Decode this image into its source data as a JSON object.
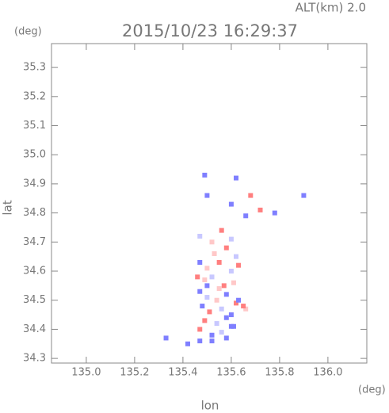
{
  "chart_data": {
    "type": "scatter",
    "altitude_text": "ALT(km) 2.0",
    "title": "2015/10/23 16:29:37",
    "y_unit": "(deg)",
    "x_unit": "(deg)",
    "ylabel": "lat",
    "xlabel": "lon",
    "xlim": [
      134.856,
      136.161
    ],
    "ylim": [
      34.284,
      35.382
    ],
    "xticks": [
      {
        "value": 135.0,
        "label": "135.0"
      },
      135.2,
      135.4,
      135.6,
      135.8,
      {
        "value": 136.0,
        "label": "136.0"
      }
    ],
    "yticks": [
      34.3,
      34.4,
      34.5,
      34.6,
      34.7,
      34.8,
      34.9,
      {
        "value": 35.0,
        "label": "35.0"
      },
      35.1,
      35.2,
      35.3
    ],
    "x": [
      135.49,
      135.5,
      135.62,
      135.6,
      135.68,
      135.66,
      135.72,
      135.78,
      135.9,
      135.47,
      135.52,
      135.56,
      135.6,
      135.53,
      135.58,
      135.62,
      135.47,
      135.5,
      135.55,
      135.6,
      135.63,
      135.49,
      135.52,
      135.57,
      135.61,
      135.47,
      135.5,
      135.54,
      135.58,
      135.62,
      135.48,
      135.51,
      135.56,
      135.6,
      135.63,
      135.66,
      135.49,
      135.54,
      135.58,
      135.6,
      135.65,
      135.47,
      135.52,
      135.56,
      135.61,
      135.46,
      135.5,
      135.55,
      135.33,
      135.42,
      135.47,
      135.52,
      135.58
    ],
    "y": [
      34.93,
      34.86,
      34.92,
      34.83,
      34.86,
      34.79,
      34.81,
      34.8,
      34.86,
      34.72,
      34.7,
      34.74,
      34.71,
      34.66,
      34.68,
      34.65,
      34.63,
      34.61,
      34.63,
      34.6,
      34.62,
      34.57,
      34.58,
      34.55,
      34.56,
      34.53,
      34.51,
      34.5,
      34.52,
      34.49,
      34.48,
      34.46,
      34.47,
      34.45,
      34.5,
      34.47,
      34.43,
      34.42,
      34.44,
      34.41,
      34.48,
      34.4,
      34.38,
      34.39,
      34.41,
      34.58,
      34.55,
      34.54,
      34.37,
      34.35,
      34.36,
      34.36,
      34.37
    ],
    "colors": [
      "#7f7fff",
      "#7f7fff",
      "#7f7fff",
      "#7f7fff",
      "#ff7f7f",
      "#7f7fff",
      "#ff7f7f",
      "#7f7fff",
      "#7f7fff",
      "#c8c8ff",
      "#ffc8c8",
      "#ff7f7f",
      "#c8c8ff",
      "#ffc8c8",
      "#ff7f7f",
      "#c8c8ff",
      "#7f7fff",
      "#ffc8c8",
      "#ff7f7f",
      "#c8c8ff",
      "#ff7f7f",
      "#ffc8c8",
      "#c8c8ff",
      "#ff7f7f",
      "#ffc8c8",
      "#7f7fff",
      "#c8c8ff",
      "#ffc8c8",
      "#7f7fff",
      "#ff7f7f",
      "#7f7fff",
      "#ff7f7f",
      "#c8c8ff",
      "#7f7fff",
      "#7f7fff",
      "#ffc8c8",
      "#ff7f7f",
      "#c8c8ff",
      "#7f7fff",
      "#7f7fff",
      "#ff7f7f",
      "#ff7f7f",
      "#7f7fff",
      "#c8c8ff",
      "#7f7fff",
      "#ff7f7f",
      "#7f7fff",
      "#ffc8c8",
      "#7f7fff",
      "#7f7fff",
      "#7f7fff",
      "#7f7fff",
      "#7f7fff"
    ]
  }
}
